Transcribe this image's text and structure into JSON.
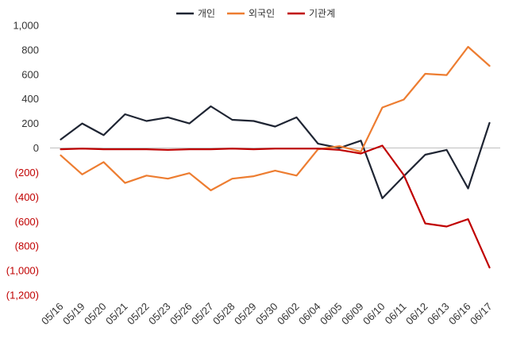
{
  "chart_data": {
    "type": "line",
    "legend_position": "top-center",
    "grid": false,
    "categories": [
      "05/16",
      "05/19",
      "05/20",
      "05/21",
      "05/22",
      "05/23",
      "05/26",
      "05/27",
      "05/28",
      "05/29",
      "05/30",
      "06/02",
      "06/04",
      "06/05",
      "06/09",
      "06/10",
      "06/11",
      "06/12",
      "06/13",
      "06/16",
      "06/17"
    ],
    "ylim": [
      -1200,
      1000
    ],
    "y_ticks": [
      {
        "value": 1000,
        "label": "1,000"
      },
      {
        "value": 800,
        "label": "800"
      },
      {
        "value": 600,
        "label": "600"
      },
      {
        "value": 400,
        "label": "400"
      },
      {
        "value": 200,
        "label": "200"
      },
      {
        "value": 0,
        "label": "0"
      },
      {
        "value": -200,
        "label": "(200)"
      },
      {
        "value": -400,
        "label": "(400)"
      },
      {
        "value": -600,
        "label": "(600)"
      },
      {
        "value": -800,
        "label": "(800)"
      },
      {
        "value": -1000,
        "label": "(1,000)"
      },
      {
        "value": -1200,
        "label": "(1,200)"
      }
    ],
    "positive_tick_color": "#333333",
    "negative_tick_color": "#c00000",
    "zero_line_color": "#bfbfbf",
    "series": [
      {
        "name": "개인",
        "color": "#1f2533",
        "values": [
          70,
          200,
          105,
          275,
          220,
          250,
          200,
          340,
          230,
          220,
          175,
          250,
          35,
          0,
          60,
          -410,
          -230,
          -55,
          -15,
          -330,
          205
        ]
      },
      {
        "name": "외국인",
        "color": "#ed7d31",
        "values": [
          -60,
          -215,
          -115,
          -285,
          -225,
          -250,
          -205,
          -345,
          -250,
          -230,
          -185,
          -225,
          -10,
          15,
          -30,
          330,
          395,
          605,
          595,
          825,
          670
        ]
      },
      {
        "name": "기관계",
        "color": "#c00000",
        "values": [
          -10,
          -5,
          -10,
          -10,
          -10,
          -15,
          -10,
          -10,
          -5,
          -10,
          -5,
          -5,
          -5,
          -15,
          -45,
          20,
          -220,
          -615,
          -640,
          -580,
          -975
        ]
      }
    ]
  }
}
